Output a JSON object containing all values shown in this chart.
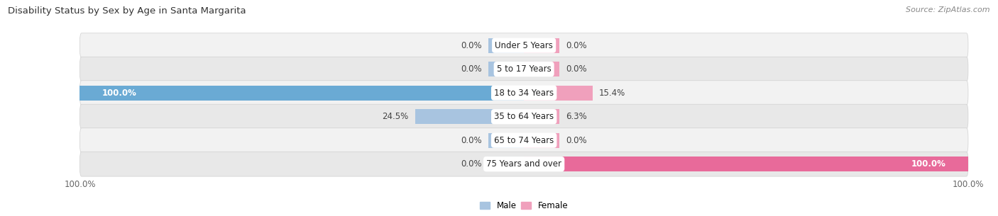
{
  "title": "Disability Status by Sex by Age in Santa Margarita",
  "source": "Source: ZipAtlas.com",
  "categories": [
    "Under 5 Years",
    "5 to 17 Years",
    "18 to 34 Years",
    "35 to 64 Years",
    "65 to 74 Years",
    "75 Years and over"
  ],
  "male_values": [
    0.0,
    0.0,
    100.0,
    24.5,
    0.0,
    0.0
  ],
  "female_values": [
    0.0,
    0.0,
    15.4,
    6.3,
    0.0,
    100.0
  ],
  "male_color": "#a8c4e0",
  "female_color": "#f0a0bc",
  "male_color_full": "#6aaad4",
  "female_color_full": "#e86a9a",
  "row_bg_light": "#f2f2f2",
  "row_bg_dark": "#e8e8e8",
  "row_separator": "#d0d0d0",
  "min_bar_pct": 8.0,
  "xlim_left": -100,
  "xlim_right": 100,
  "title_fontsize": 9.5,
  "source_fontsize": 8,
  "label_fontsize": 8.5,
  "category_fontsize": 8.5,
  "fig_bg_color": "#ffffff"
}
